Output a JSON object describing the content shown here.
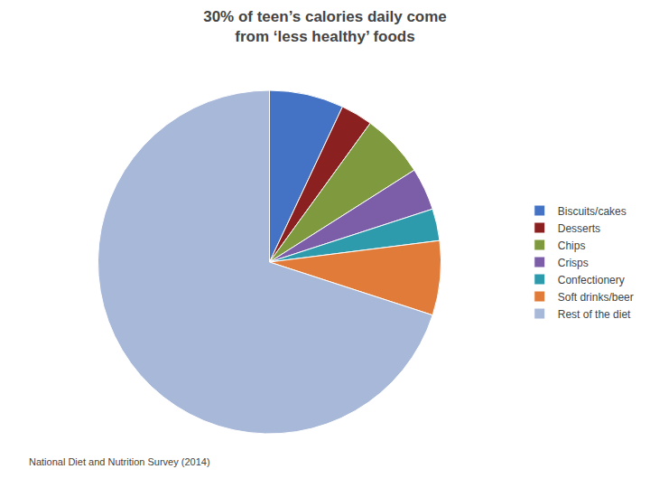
{
  "chart_data": {
    "type": "pie",
    "title": "30% of teen’s calories daily come\nfrom ‘less healthy’ foods",
    "subtitle": "National Diet and Nutrition Survey (2014)",
    "categories": [
      "Biscuits/cakes",
      "Desserts",
      "Chips",
      "Crisps",
      "Confectionery",
      "Soft drinks/beer",
      "Rest of the diet"
    ],
    "values": [
      7,
      3,
      6,
      4,
      3,
      7,
      70
    ],
    "colors": [
      "#4472C4",
      "#8B2020",
      "#7F9A3E",
      "#7B5EA7",
      "#2E9BAD",
      "#E07B39",
      "#A8B8D8"
    ],
    "legend": "right"
  }
}
